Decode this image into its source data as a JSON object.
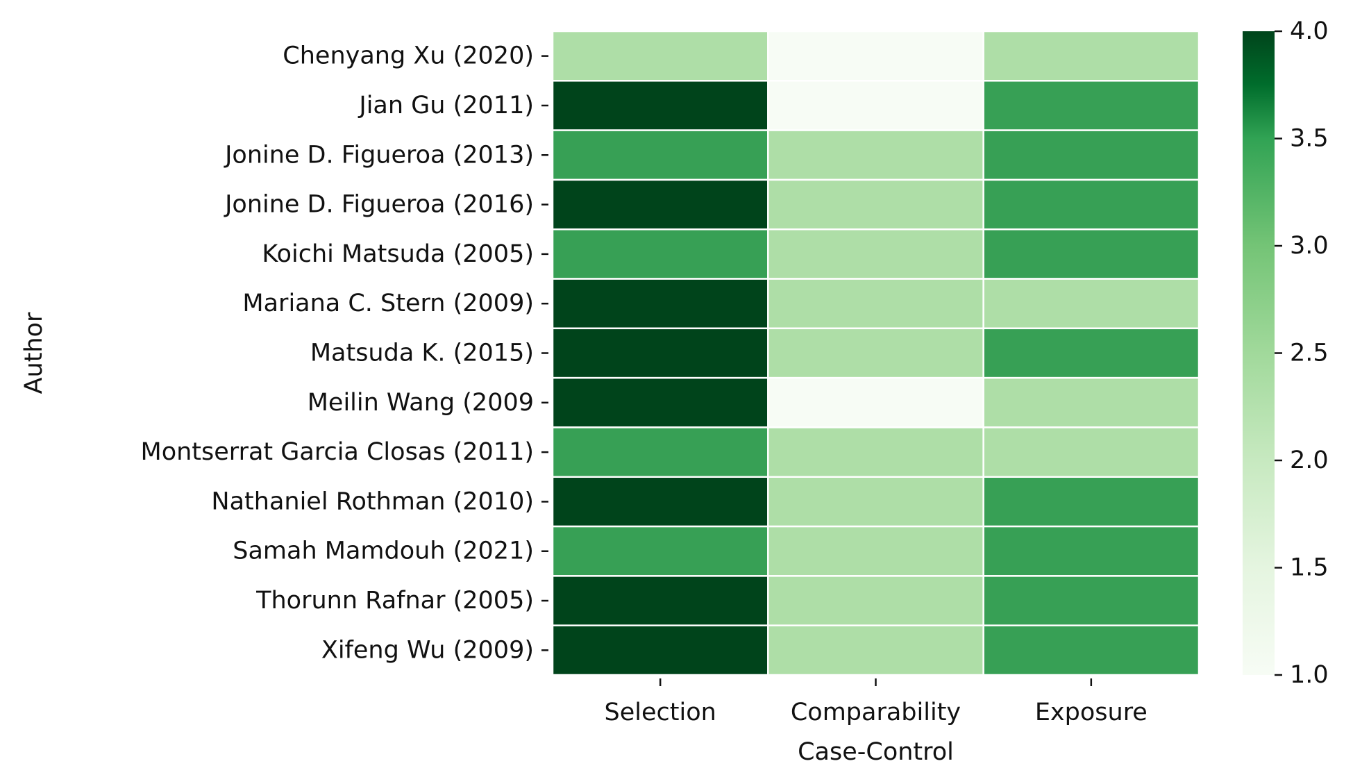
{
  "chart_data": {
    "type": "heatmap",
    "title": "",
    "xlabel": "Case-Control",
    "ylabel": "Author",
    "colormap": "Greens",
    "categories_x": [
      "Selection",
      "Comparability",
      "Exposure"
    ],
    "categories_y": [
      "Chenyang Xu (2020)",
      "Jian Gu (2011)",
      "Jonine D. Figueroa (2013)",
      "Jonine D. Figueroa (2016)",
      "Koichi Matsuda (2005)",
      "Mariana C. Stern (2009)",
      "Matsuda K. (2015)",
      "Meilin Wang (2009",
      "Montserrat Garcia Closas (2011)",
      "Nathaniel Rothman (2010)",
      "Samah Mamdouh (2021)",
      "Thorunn Rafnar (2005)",
      "Xifeng Wu (2009)"
    ],
    "values": [
      [
        2,
        1,
        2
      ],
      [
        4,
        1,
        3
      ],
      [
        3,
        2,
        3
      ],
      [
        4,
        2,
        3
      ],
      [
        3,
        2,
        3
      ],
      [
        4,
        2,
        2
      ],
      [
        4,
        2,
        3
      ],
      [
        4,
        1,
        2
      ],
      [
        3,
        2,
        2
      ],
      [
        4,
        2,
        3
      ],
      [
        3,
        2,
        3
      ],
      [
        4,
        2,
        3
      ],
      [
        4,
        2,
        3
      ]
    ],
    "colorbar": {
      "range": [
        1.0,
        4.0
      ],
      "ticks": [
        "1.0",
        "1.5",
        "2.0",
        "2.5",
        "3.0",
        "3.5",
        "4.0"
      ]
    },
    "grid": false,
    "legend": "colorbar-right"
  }
}
